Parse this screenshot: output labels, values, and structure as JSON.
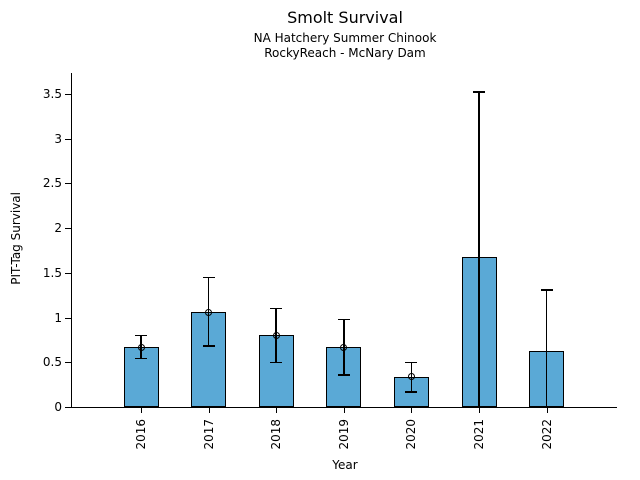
{
  "chart_data": {
    "type": "bar",
    "title": "Smolt Survival",
    "subtitle1": "NA Hatchery Summer Chinook",
    "subtitle2": "RockyReach - McNary Dam",
    "xlabel": "Year",
    "ylabel": "PIT-Tag Survival",
    "categories": [
      "2016",
      "2017",
      "2018",
      "2019",
      "2020",
      "2021",
      "2022"
    ],
    "values": [
      0.67,
      1.06,
      0.8,
      0.67,
      0.34,
      1.68,
      0.63
    ],
    "error_low": [
      0.54,
      0.68,
      0.5,
      0.36,
      0.17,
      0.0,
      0.0
    ],
    "error_high": [
      0.8,
      1.45,
      1.1,
      0.98,
      0.5,
      3.52,
      1.31
    ],
    "point_marker": [
      true,
      true,
      true,
      true,
      true,
      false,
      false
    ],
    "ytick_values": [
      0,
      0.5,
      1,
      1.5,
      2,
      2.5,
      3,
      3.5
    ],
    "ytick_labels": [
      "0",
      "0.5",
      "1",
      "1.5",
      "2",
      "2.5",
      "3",
      "3.5"
    ],
    "ylim": [
      0,
      3.73
    ],
    "grid": false,
    "legend": null,
    "colors": {
      "bar_fill": "#5aa9d6",
      "bar_edge": "#000000",
      "error_bar": "#000000",
      "background": "#ffffff"
    }
  }
}
